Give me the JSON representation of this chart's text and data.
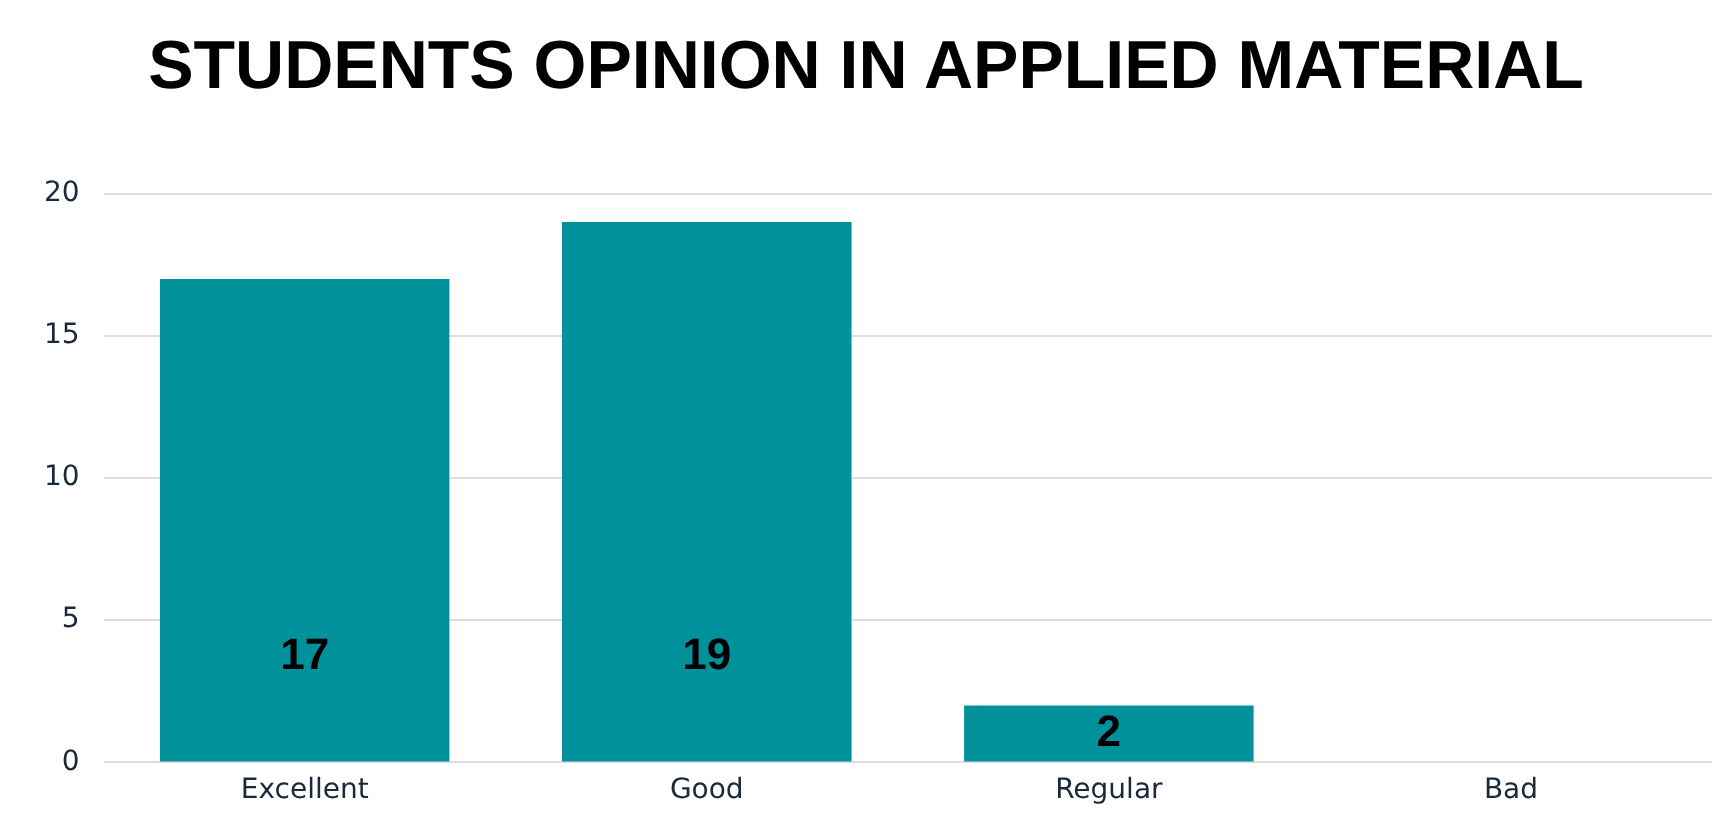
{
  "chart_data": {
    "type": "bar",
    "title": "STUDENTS OPINION IN APPLIED MATERIAL",
    "categories": [
      "Excellent",
      "Good",
      "Regular",
      "Bad"
    ],
    "values": [
      17,
      19,
      2,
      0
    ],
    "value_labels": [
      "17",
      "19",
      "2",
      null
    ],
    "color": "#00919a",
    "ylim": [
      0,
      20
    ],
    "yticks": [
      0,
      5,
      10,
      15,
      20
    ],
    "grid": "y",
    "legend": false
  }
}
